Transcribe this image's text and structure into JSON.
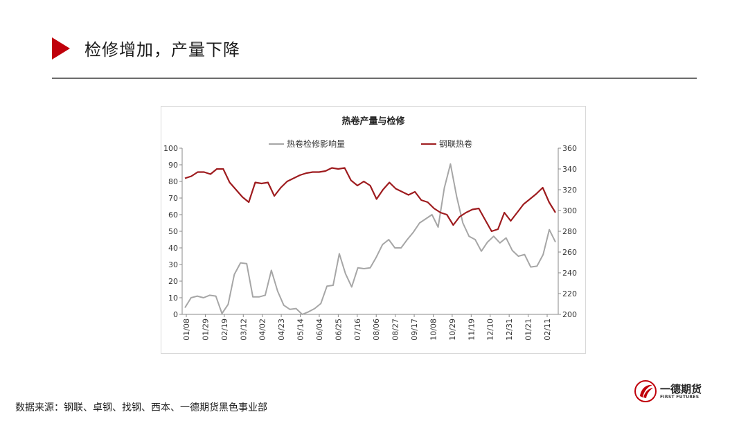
{
  "slide": {
    "title": "检修增加，产量下降",
    "source": "数据来源：钢联、卓钢、找钢、西本、一德期货黑色事业部"
  },
  "logo": {
    "name": "一德期货",
    "sub": "FIRST FUTURES"
  },
  "colors": {
    "accent": "#c0000b",
    "maintenance_series": "#a6a6a6",
    "production_series": "#9e1b1e"
  },
  "chart_data": {
    "type": "line",
    "title": "热卷产量与检修",
    "legend_position": "top",
    "grid": false,
    "xlabel": "",
    "ylabel": "",
    "x_tick_labels": [
      "01/08",
      "01/29",
      "02/19",
      "03/12",
      "04/02",
      "04/23",
      "05/14",
      "06/04",
      "06/25",
      "07/16",
      "08/06",
      "08/27",
      "09/17",
      "10/08",
      "10/29",
      "11/19",
      "12/10",
      "12/31",
      "01/21",
      "02/11"
    ],
    "y_left": {
      "min": 0,
      "max": 100,
      "ticks": [
        0,
        10,
        20,
        30,
        40,
        50,
        60,
        70,
        80,
        90,
        100
      ]
    },
    "y_right": {
      "min": 200,
      "max": 360,
      "ticks": [
        200,
        220,
        240,
        260,
        280,
        300,
        320,
        340,
        360
      ]
    },
    "series": [
      {
        "name": "热卷检修影响量",
        "axis": "left",
        "values": [
          4,
          10,
          11,
          10,
          11.5,
          11,
          0.5,
          6,
          24,
          31,
          30.5,
          10.5,
          10.5,
          11.5,
          26.5,
          14,
          5.5,
          3,
          3.5,
          0,
          1.5,
          3.5,
          6.5,
          17,
          17.5,
          36.5,
          24.5,
          16.5,
          28,
          27.5,
          28,
          34.5,
          42,
          45,
          40,
          40,
          45,
          49.5,
          55,
          57.5,
          60,
          52.5,
          76,
          90.5,
          71,
          55,
          47,
          45,
          38,
          43.5,
          47,
          43,
          46,
          38.5,
          35,
          36,
          28.5,
          29,
          36,
          51,
          43.5
        ]
      },
      {
        "name": "钢联热卷",
        "axis": "right",
        "values": [
          331,
          333,
          337,
          337,
          335,
          340,
          340,
          327,
          320,
          313,
          308,
          327,
          326,
          327,
          314,
          322,
          328,
          331,
          334,
          336,
          337,
          337,
          338,
          341,
          340,
          341,
          329,
          324,
          328,
          324,
          311,
          320,
          327,
          321,
          318,
          315,
          318,
          310,
          308,
          302,
          298,
          296,
          286,
          294,
          298,
          301,
          302,
          291,
          280,
          282,
          298,
          290,
          298,
          306,
          311,
          316,
          322,
          308,
          298
        ]
      }
    ]
  }
}
